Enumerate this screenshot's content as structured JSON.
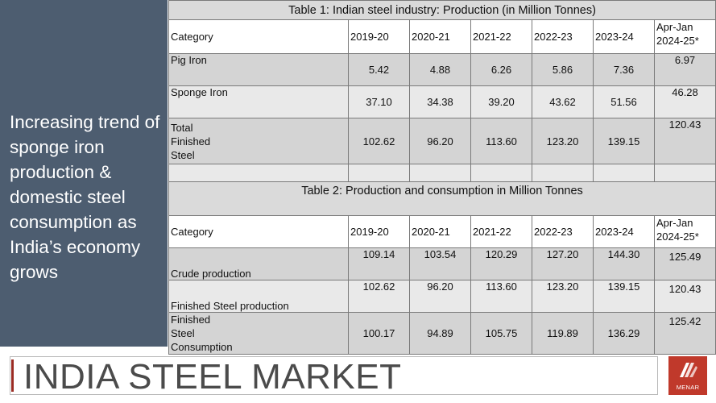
{
  "sidebar": {
    "caption": "Increasing trend of sponge iron production & domestic steel consumption as India’s economy grows"
  },
  "table1": {
    "title": "Table 1: Indian steel industry: Production (in Million Tonnes)",
    "header": [
      "Category",
      "2019-20",
      "2020-21",
      "2021-22",
      "2022-23",
      "2023-24",
      "Apr-Jan 2024-25*"
    ],
    "rows": [
      {
        "category": "Pig Iron",
        "values": [
          "5.42",
          "4.88",
          "6.26",
          "5.86",
          "7.36",
          "6.97"
        ]
      },
      {
        "category": "Sponge Iron",
        "values": [
          "37.10",
          "34.38",
          "39.20",
          "43.62",
          "51.56",
          "46.28"
        ]
      },
      {
        "category": "Total Finished Steel",
        "values": [
          "102.62",
          "96.20",
          "113.60",
          "123.20",
          "139.15",
          "120.43"
        ]
      }
    ]
  },
  "table2": {
    "title": "Table 2: Production and consumption in Million Tonnes",
    "header": [
      "Category",
      "2019-20",
      "2020-21",
      "2021-22",
      "2022-23",
      "2023-24",
      "Apr-Jan 2024-25*"
    ],
    "rows": [
      {
        "category": "Crude production",
        "values": [
          "109.14",
          "103.54",
          "120.29",
          "127.20",
          "144.30",
          "125.49"
        ]
      },
      {
        "category": "Finished Steel production",
        "values": [
          "102.62",
          "96.20",
          "113.60",
          "123.20",
          "139.15",
          "120.43"
        ]
      },
      {
        "category": "Finished Steel Consumption",
        "values": [
          "100.17",
          "94.89",
          "105.75",
          "119.89",
          "136.29",
          "125.42"
        ]
      }
    ]
  },
  "footer": {
    "title": "INDIA STEEL MARKET",
    "logo_text": "MENAR"
  },
  "colors": {
    "sidebar_bg": "#4d5d70",
    "accent": "#9b2b23",
    "logo_bg": "#c0392b"
  }
}
